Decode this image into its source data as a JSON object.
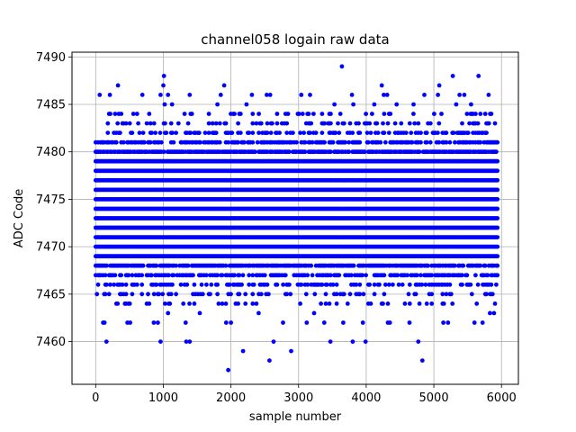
{
  "chart_data": {
    "type": "scatter",
    "title": "channel058 logain raw data",
    "xlabel": "sample number",
    "ylabel": "ADC Code",
    "xlim": [
      -350,
      6250
    ],
    "ylim": [
      7455.5,
      7490.5
    ],
    "xticks": [
      0,
      1000,
      2000,
      3000,
      4000,
      5000,
      6000
    ],
    "xtick_labels": [
      "0",
      "1000",
      "2000",
      "3000",
      "4000",
      "5000",
      "6000"
    ],
    "yticks": [
      7460,
      7465,
      7470,
      7475,
      7480,
      7485,
      7490
    ],
    "ytick_labels": [
      "7460",
      "7465",
      "7470",
      "7475",
      "7480",
      "7485",
      "7490"
    ],
    "grid": true,
    "marker_color": "#0000ff",
    "x_range": [
      0,
      5950
    ],
    "dense_band": [
      7469,
      7479
    ],
    "series": [
      {
        "points": [
          [
            1960,
            7457
          ],
          [
            2570,
            7458
          ],
          [
            4830,
            7458
          ],
          [
            2180,
            7459
          ],
          [
            2890,
            7459
          ],
          [
            160,
            7460
          ],
          [
            960,
            7460
          ],
          [
            1340,
            7460
          ],
          [
            1390,
            7460
          ],
          [
            2630,
            7460
          ],
          [
            3470,
            7460
          ],
          [
            3800,
            7460
          ],
          [
            3990,
            7460
          ],
          [
            4770,
            7460
          ],
          [
            110,
            7462
          ],
          [
            130,
            7462
          ],
          [
            470,
            7462
          ],
          [
            510,
            7462
          ],
          [
            860,
            7462
          ],
          [
            920,
            7462
          ],
          [
            1330,
            7462
          ],
          [
            1930,
            7462
          ],
          [
            2000,
            7462
          ],
          [
            2770,
            7462
          ],
          [
            3120,
            7462
          ],
          [
            3380,
            7462
          ],
          [
            3660,
            7462
          ],
          [
            3950,
            7462
          ],
          [
            4320,
            7462
          ],
          [
            4350,
            7462
          ],
          [
            4640,
            7462
          ],
          [
            5140,
            7462
          ],
          [
            5210,
            7462
          ],
          [
            5600,
            7462
          ],
          [
            5720,
            7462
          ],
          [
            1070,
            7463
          ],
          [
            1540,
            7463
          ],
          [
            2410,
            7463
          ],
          [
            3230,
            7463
          ],
          [
            5830,
            7463
          ],
          [
            5890,
            7463
          ],
          [
            3640,
            7489
          ],
          [
            1010,
            7488
          ],
          [
            5280,
            7488
          ],
          [
            5660,
            7488
          ],
          [
            1000,
            7487
          ],
          [
            330,
            7487
          ],
          [
            1900,
            7487
          ],
          [
            4230,
            7487
          ],
          [
            5080,
            7487
          ],
          [
            60,
            7486
          ],
          [
            210,
            7486
          ],
          [
            690,
            7486
          ],
          [
            960,
            7486
          ],
          [
            1070,
            7486
          ],
          [
            1390,
            7486
          ],
          [
            1850,
            7486
          ],
          [
            2310,
            7486
          ],
          [
            2530,
            7486
          ],
          [
            2580,
            7486
          ],
          [
            3040,
            7486
          ],
          [
            3170,
            7486
          ],
          [
            3790,
            7486
          ],
          [
            4260,
            7486
          ],
          [
            4310,
            7486
          ],
          [
            4860,
            7486
          ],
          [
            5060,
            7486
          ],
          [
            5380,
            7486
          ],
          [
            5450,
            7486
          ],
          [
            5810,
            7486
          ],
          [
            1020,
            7485
          ],
          [
            1130,
            7485
          ],
          [
            1800,
            7485
          ],
          [
            2230,
            7485
          ],
          [
            3530,
            7485
          ],
          [
            3810,
            7485
          ],
          [
            4120,
            7485
          ],
          [
            4450,
            7485
          ],
          [
            4700,
            7485
          ],
          [
            5330,
            7485
          ],
          [
            5550,
            7485
          ]
        ]
      }
    ]
  }
}
